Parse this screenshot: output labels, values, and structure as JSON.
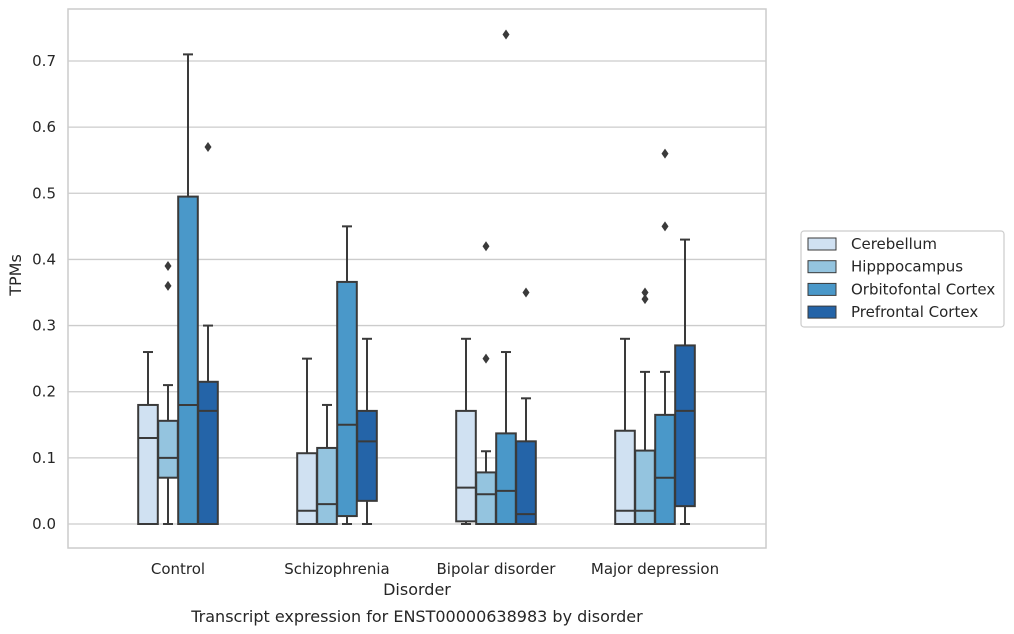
{
  "chart_data": {
    "type": "box",
    "caption": "Transcript expression for ENST00000638983 by disorder",
    "xlabel": "Disorder",
    "ylabel": "TPMs",
    "ylim": [
      -0.036,
      0.777
    ],
    "yticks": [
      0.0,
      0.1,
      0.2,
      0.3,
      0.4,
      0.5,
      0.6,
      0.7
    ],
    "ytick_labels": [
      "0.0",
      "0.1",
      "0.2",
      "0.3",
      "0.4",
      "0.5",
      "0.6",
      "0.7"
    ],
    "grid": "horizontal",
    "legend_position": "right",
    "categories": [
      "Control",
      "Schizophrenia",
      "Bipolar disorder",
      "Major depression"
    ],
    "series": [
      {
        "name": "Cerebellum",
        "color": "#d0e1f2",
        "boxes": [
          {
            "whisker_low": 0.0,
            "q1": 0.0,
            "median": 0.13,
            "q3": 0.18,
            "whisker_high": 0.26,
            "outliers": []
          },
          {
            "whisker_low": 0.0,
            "q1": 0.0,
            "median": 0.02,
            "q3": 0.107,
            "whisker_high": 0.25,
            "outliers": []
          },
          {
            "whisker_low": 0.0,
            "q1": 0.004,
            "median": 0.055,
            "q3": 0.171,
            "whisker_high": 0.28,
            "outliers": []
          },
          {
            "whisker_low": 0.0,
            "q1": 0.0,
            "median": 0.02,
            "q3": 0.141,
            "whisker_high": 0.28,
            "outliers": []
          }
        ]
      },
      {
        "name": "Hipppocampus",
        "color": "#94c4df",
        "boxes": [
          {
            "whisker_low": 0.0,
            "q1": 0.07,
            "median": 0.1,
            "q3": 0.156,
            "whisker_high": 0.21,
            "outliers": [
              0.39,
              0.36
            ]
          },
          {
            "whisker_low": 0.0,
            "q1": 0.0,
            "median": 0.03,
            "q3": 0.115,
            "whisker_high": 0.18,
            "outliers": []
          },
          {
            "whisker_low": 0.0,
            "q1": 0.0,
            "median": 0.045,
            "q3": 0.078,
            "whisker_high": 0.11,
            "outliers": [
              0.42,
              0.25
            ]
          },
          {
            "whisker_low": 0.0,
            "q1": 0.0,
            "median": 0.02,
            "q3": 0.111,
            "whisker_high": 0.23,
            "outliers": [
              0.35,
              0.34
            ]
          }
        ]
      },
      {
        "name": "Orbitofontal Cortex",
        "color": "#4a98c9",
        "boxes": [
          {
            "whisker_low": 0.0,
            "q1": 0.0,
            "median": 0.18,
            "q3": 0.495,
            "whisker_high": 0.71,
            "outliers": []
          },
          {
            "whisker_low": 0.0,
            "q1": 0.012,
            "median": 0.15,
            "q3": 0.366,
            "whisker_high": 0.45,
            "outliers": []
          },
          {
            "whisker_low": 0.0,
            "q1": 0.0,
            "median": 0.05,
            "q3": 0.137,
            "whisker_high": 0.26,
            "outliers": [
              0.74
            ]
          },
          {
            "whisker_low": 0.0,
            "q1": 0.0,
            "median": 0.07,
            "q3": 0.165,
            "whisker_high": 0.23,
            "outliers": [
              0.56,
              0.45
            ]
          }
        ]
      },
      {
        "name": "Prefrontal Cortex",
        "color": "#2464a8",
        "boxes": [
          {
            "whisker_low": 0.0,
            "q1": 0.0,
            "median": 0.171,
            "q3": 0.215,
            "whisker_high": 0.3,
            "outliers": [
              0.57
            ]
          },
          {
            "whisker_low": 0.0,
            "q1": 0.035,
            "median": 0.125,
            "q3": 0.171,
            "whisker_high": 0.28,
            "outliers": []
          },
          {
            "whisker_low": 0.0,
            "q1": 0.0,
            "median": 0.015,
            "q3": 0.125,
            "whisker_high": 0.19,
            "outliers": [
              0.35
            ]
          },
          {
            "whisker_low": 0.0,
            "q1": 0.027,
            "median": 0.171,
            "q3": 0.27,
            "whisker_high": 0.43,
            "outliers": []
          }
        ]
      }
    ]
  }
}
